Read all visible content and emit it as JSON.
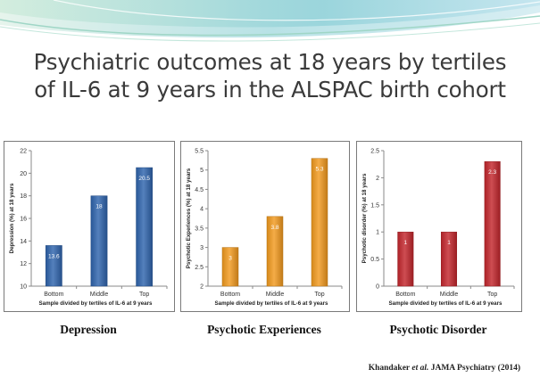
{
  "slide": {
    "title_line1": "Psychiatric outcomes at 18 years by tertiles",
    "title_line2": "of IL-6 at 9 years in the ALSPAC birth cohort"
  },
  "captions": [
    "Depression",
    "Psychotic Experiences",
    "Psychotic Disorder"
  ],
  "citation": {
    "author": "Khandaker",
    "etal": "et al.",
    "rest": "JAMA Psychiatry (2014)"
  },
  "colors": {
    "blue": "#2f64ad",
    "orange": "#f29a1e",
    "red": "#c3262c"
  },
  "chart_data": [
    {
      "type": "bar",
      "categories": [
        "Bottom",
        "Middle",
        "Top"
      ],
      "values": [
        13.6,
        18,
        20.5
      ],
      "value_labels": [
        "13.6",
        "18",
        "20.5"
      ],
      "ylabel": "Depression (%) at 18 years",
      "xlabel": "Sample divided by tertiles of IL-6 at 9 years",
      "ylim": [
        10,
        22
      ],
      "yticks": [
        "10",
        "12",
        "14",
        "16",
        "18",
        "20",
        "22"
      ],
      "color": "#2f64ad",
      "grid": false
    },
    {
      "type": "bar",
      "categories": [
        "Bottom",
        "Middle",
        "Top"
      ],
      "values": [
        3,
        3.8,
        5.3
      ],
      "value_labels": [
        "3",
        "3.8",
        "5.3"
      ],
      "ylabel": "Psychotic Experiences (%) at 18 years",
      "xlabel": "Sample divided by tertiles of IL-6 at 9 years",
      "ylim": [
        2,
        5.5
      ],
      "yticks": [
        "2",
        "2.5",
        "3",
        "3.5",
        "4",
        "4.5",
        "5",
        "5.5"
      ],
      "color": "#f29a1e",
      "grid": false
    },
    {
      "type": "bar",
      "categories": [
        "Bottom",
        "Middle",
        "Top"
      ],
      "values": [
        1,
        1,
        2.3
      ],
      "value_labels": [
        "1",
        "1",
        "2.3"
      ],
      "ylabel": "Psychotic disorder (%) at 18 years",
      "xlabel": "Sample divided by tertiles of IL-6 at 9 years",
      "ylim": [
        0,
        2.5
      ],
      "yticks": [
        "0",
        "0.5",
        "1",
        "1.5",
        "2",
        "2.5"
      ],
      "color": "#c3262c",
      "grid": false
    }
  ]
}
